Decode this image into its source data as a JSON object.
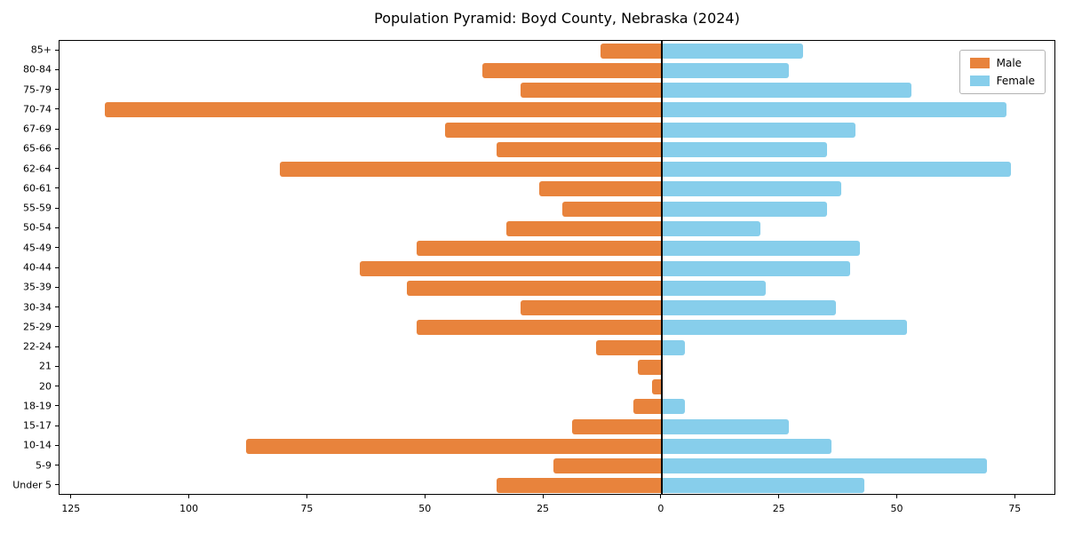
{
  "title": "Population Pyramid: Boyd County, Nebraska (2024)",
  "colors": {
    "male": "#e8833c",
    "female": "#87ceeb",
    "axis": "#000000",
    "legend_border": "#b3b3b3"
  },
  "legend": {
    "position": "upper right",
    "male_label": "Male",
    "female_label": "Female"
  },
  "chart_data": {
    "type": "bar",
    "variant": "population-pyramid",
    "title": "Population Pyramid: Boyd County, Nebraska (2024)",
    "xlabel": "",
    "ylabel": "",
    "grid": false,
    "legend_position": "upper right",
    "categories": [
      "85+",
      "80-84",
      "75-79",
      "70-74",
      "67-69",
      "65-66",
      "62-64",
      "60-61",
      "55-59",
      "50-54",
      "45-49",
      "40-44",
      "35-39",
      "30-34",
      "25-29",
      "22-24",
      "21",
      "20",
      "18-19",
      "15-17",
      "10-14",
      "5-9",
      "Under 5"
    ],
    "series": [
      {
        "name": "Male",
        "color": "#e8833c",
        "direction": "left",
        "values": [
          13,
          38,
          30,
          118,
          46,
          35,
          81,
          26,
          21,
          33,
          52,
          64,
          54,
          30,
          52,
          14,
          5,
          2,
          6,
          19,
          88,
          23,
          35
        ]
      },
      {
        "name": "Female",
        "color": "#87ceeb",
        "direction": "right",
        "values": [
          30,
          27,
          53,
          73,
          41,
          35,
          74,
          38,
          35,
          21,
          42,
          40,
          22,
          37,
          52,
          5,
          0,
          0,
          5,
          27,
          36,
          69,
          43
        ]
      }
    ],
    "x_ticks": [
      -125,
      -100,
      -75,
      -50,
      -25,
      0,
      25,
      50,
      75
    ],
    "x_tick_labels": [
      "125",
      "100",
      "75",
      "50",
      "25",
      "0",
      "25",
      "50",
      "75"
    ],
    "xlim": [
      -127.6,
      83.6
    ]
  }
}
